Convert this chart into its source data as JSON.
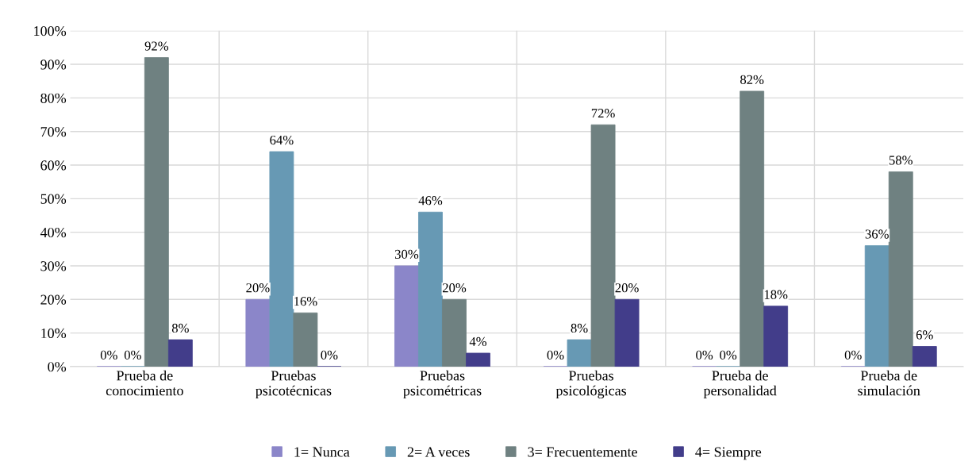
{
  "chart_data": {
    "type": "bar",
    "categories": [
      "Prueba de\nconocimiento",
      "Pruebas\npsicotécnicas",
      "Pruebas\npsicométricas",
      "Pruebas\npsicológicas",
      "Prueba de\npersonalidad",
      "Prueba de\nsimulación"
    ],
    "series": [
      {
        "name": "1= Nunca",
        "color": "#8b86c9",
        "values": [
          0,
          20,
          30,
          0,
          0,
          0
        ],
        "value_labels": [
          "0%",
          "20%",
          "30%",
          "0%",
          "0%",
          "0%"
        ]
      },
      {
        "name": "2= A veces",
        "color": "#6799b4",
        "values": [
          0,
          64,
          46,
          8,
          0,
          36
        ],
        "value_labels": [
          "0%",
          "64%",
          "46%",
          "8%",
          "0%",
          "36%"
        ]
      },
      {
        "name": "3= Frecuentemente",
        "color": "#6f8181",
        "values": [
          92,
          16,
          20,
          72,
          82,
          58
        ],
        "value_labels": [
          "92%",
          "16%",
          "20%",
          "72%",
          "82%",
          "58%"
        ]
      },
      {
        "name": "4= Siempre",
        "color": "#423d8a",
        "values": [
          8,
          0,
          4,
          20,
          18,
          6
        ],
        "value_labels": [
          "8%",
          "0%",
          "4%",
          "20%",
          "18%",
          "6%"
        ]
      }
    ],
    "ylim": [
      0,
      100
    ],
    "yticks": [
      {
        "value": 0,
        "label": "0%"
      },
      {
        "value": 10,
        "label": "10%"
      },
      {
        "value": 20,
        "label": "20%"
      },
      {
        "value": 30,
        "label": "30%"
      },
      {
        "value": 40,
        "label": "40%"
      },
      {
        "value": 50,
        "label": "50%"
      },
      {
        "value": 60,
        "label": "60%"
      },
      {
        "value": 70,
        "label": "70%"
      },
      {
        "value": 80,
        "label": "80%"
      },
      {
        "value": 90,
        "label": "90%"
      },
      {
        "value": 100,
        "label": "100%"
      }
    ],
    "grid": true,
    "legend": "bottom"
  }
}
